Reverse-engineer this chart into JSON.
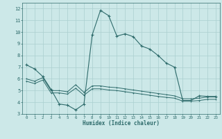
{
  "xlabel": "Humidex (Indice chaleur)",
  "xlim": [
    -0.5,
    23.5
  ],
  "ylim": [
    3,
    12.5
  ],
  "yticks": [
    3,
    4,
    5,
    6,
    7,
    8,
    9,
    10,
    11,
    12
  ],
  "xticks": [
    0,
    1,
    2,
    3,
    4,
    5,
    6,
    7,
    8,
    9,
    10,
    11,
    12,
    13,
    14,
    15,
    16,
    17,
    18,
    19,
    20,
    21,
    22,
    23
  ],
  "line_color": "#2e6b6b",
  "bg_color": "#cce8e8",
  "grid_color": "#aacfcf",
  "curve1_x": [
    0,
    1,
    2,
    3,
    4,
    5,
    6,
    7,
    8,
    9,
    10,
    11,
    12,
    13,
    14,
    15,
    16,
    17,
    18,
    19,
    20,
    21,
    22,
    23
  ],
  "curve1_y": [
    7.2,
    6.85,
    6.2,
    5.1,
    3.85,
    3.75,
    3.35,
    3.85,
    9.75,
    11.85,
    11.4,
    9.65,
    9.85,
    9.6,
    8.8,
    8.55,
    8.0,
    7.35,
    7.0,
    4.15,
    4.15,
    4.55,
    4.5,
    4.5
  ],
  "curve2_x": [
    0,
    1,
    2,
    3,
    4,
    5,
    6,
    7,
    8,
    9,
    10,
    11,
    12,
    13,
    14,
    15,
    16,
    17,
    18,
    19,
    20,
    21,
    22,
    23
  ],
  "curve2_y": [
    6.0,
    5.8,
    6.1,
    5.0,
    5.0,
    4.9,
    5.5,
    4.85,
    5.4,
    5.4,
    5.3,
    5.25,
    5.15,
    5.05,
    4.95,
    4.85,
    4.75,
    4.65,
    4.55,
    4.3,
    4.3,
    4.35,
    4.45,
    4.45
  ],
  "curve3_x": [
    0,
    1,
    2,
    3,
    4,
    5,
    6,
    7,
    8,
    9,
    10,
    11,
    12,
    13,
    14,
    15,
    16,
    17,
    18,
    19,
    20,
    21,
    22,
    23
  ],
  "curve3_y": [
    5.8,
    5.6,
    5.9,
    4.8,
    4.8,
    4.7,
    5.2,
    4.6,
    5.15,
    5.15,
    5.05,
    5.0,
    4.9,
    4.8,
    4.7,
    4.6,
    4.5,
    4.42,
    4.35,
    4.1,
    4.1,
    4.15,
    4.25,
    4.25
  ]
}
